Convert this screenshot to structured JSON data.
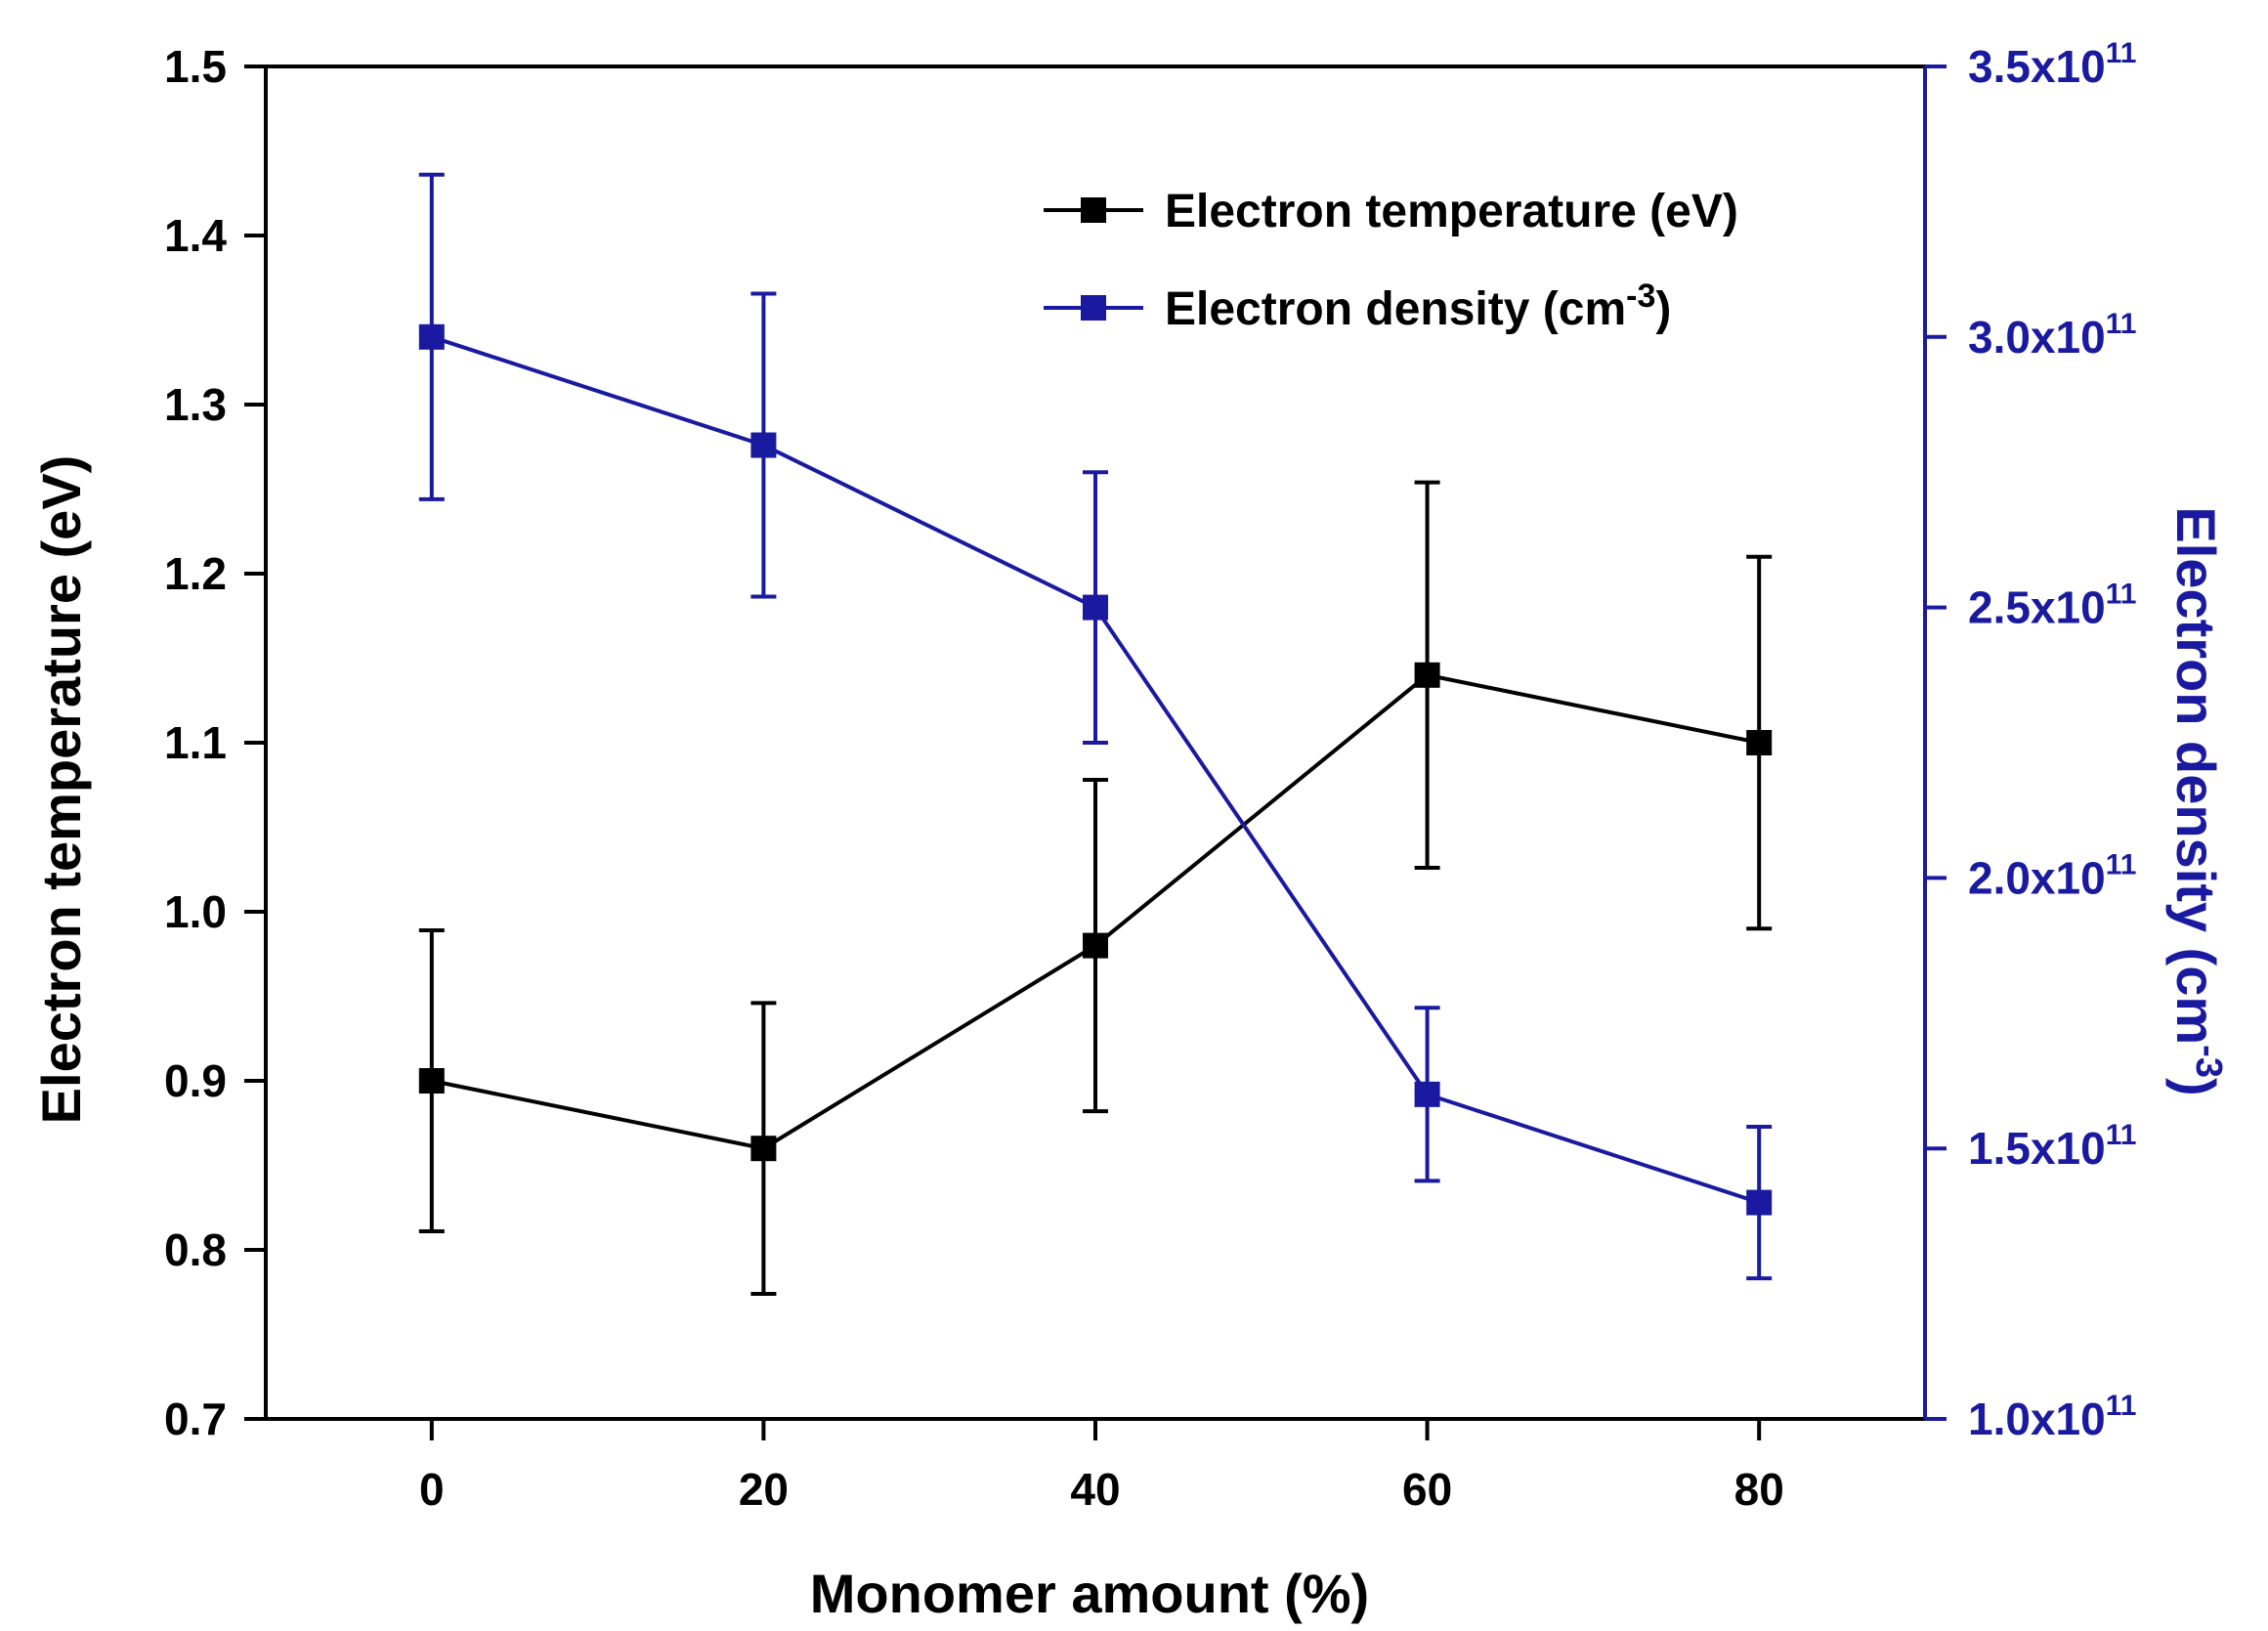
{
  "chart_data": {
    "type": "line",
    "title": "",
    "xlabel": "Monomer amount (%)",
    "ylabel_left": "Electron temperature (eV)",
    "ylabel_right_prefix": "Electron density (cm",
    "ylabel_right_sup": "-3",
    "ylabel_right_suffix": ")",
    "x": [
      0,
      20,
      40,
      60,
      80
    ],
    "xlim": [
      -10,
      90
    ],
    "x_ticks": [
      "0",
      "20",
      "40",
      "60",
      "80"
    ],
    "ylim_left": [
      0.7,
      1.5
    ],
    "y_ticks_left": [
      "0.7",
      "0.8",
      "0.9",
      "1.0",
      "1.1",
      "1.2",
      "1.3",
      "1.4",
      "1.5"
    ],
    "ylim_right": [
      1.0,
      3.5
    ],
    "y_ticks_right": [
      {
        "mantissa": "1.0",
        "base": "x10",
        "exp": "11"
      },
      {
        "mantissa": "1.5",
        "base": "x10",
        "exp": "11"
      },
      {
        "mantissa": "2.0",
        "base": "x10",
        "exp": "11"
      },
      {
        "mantissa": "2.5",
        "base": "x10",
        "exp": "11"
      },
      {
        "mantissa": "3.0",
        "base": "x10",
        "exp": "11"
      },
      {
        "mantissa": "3.5",
        "base": "x10",
        "exp": "11"
      }
    ],
    "grid": false,
    "legend_position": "top-right",
    "series": [
      {
        "name": "Electron temperature (eV)",
        "name_prefix": "Electron temperature (eV)",
        "name_sup": "",
        "name_suffix": "",
        "axis": "left",
        "color": "#000000",
        "values": [
          0.9,
          0.86,
          0.98,
          1.14,
          1.1
        ],
        "errors": [
          0.089,
          0.086,
          0.098,
          0.114,
          0.11
        ]
      },
      {
        "name": "Electron density (cm-3)",
        "name_prefix": "Electron density (cm",
        "name_sup": "-3",
        "name_suffix": ")",
        "axis": "right",
        "color": "#1a1aa0",
        "values": [
          3.0,
          2.8,
          2.5,
          1.6,
          1.4
        ],
        "errors": [
          0.3,
          0.28,
          0.25,
          0.16,
          0.14
        ]
      }
    ]
  }
}
